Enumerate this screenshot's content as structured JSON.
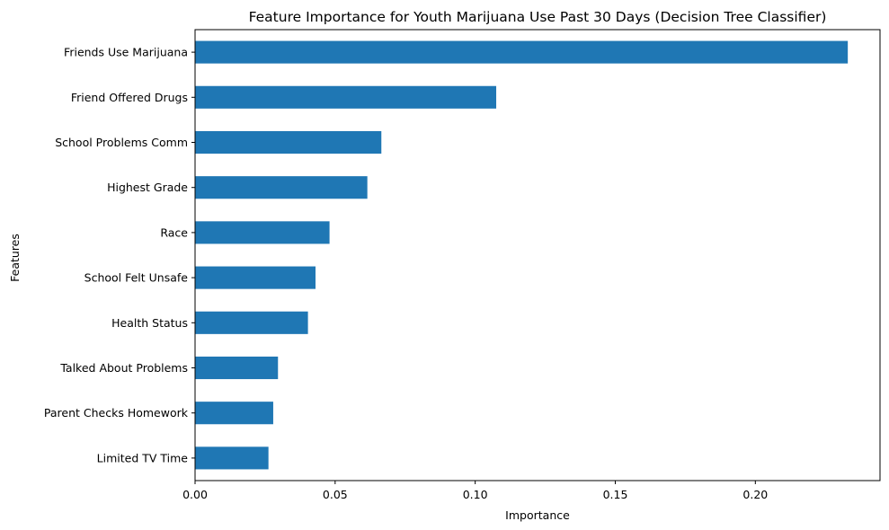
{
  "chart_data": {
    "type": "bar",
    "orientation": "horizontal",
    "title": "Feature Importance for Youth Marijuana Use Past 30 Days (Decision Tree Classifier)",
    "xlabel": "Importance",
    "ylabel": "Features",
    "categories": [
      "Friends Use Marijuana",
      "Friend Offered Drugs",
      "School Problems Comm",
      "Highest Grade",
      "Race",
      "School Felt Unsafe",
      "Health Status",
      "Talked About Problems",
      "Parent Checks Homework",
      "Limited TV Time"
    ],
    "values": [
      0.233,
      0.1075,
      0.0665,
      0.0615,
      0.048,
      0.043,
      0.0403,
      0.0296,
      0.0279,
      0.0262
    ],
    "xlim": [
      0,
      0.2445
    ],
    "xticks": [
      0.0,
      0.05,
      0.1,
      0.15,
      0.2
    ],
    "xtick_labels": [
      "0.00",
      "0.05",
      "0.10",
      "0.15",
      "0.20"
    ],
    "grid": false,
    "legend": "none",
    "bar_color": "#1f77b4"
  }
}
